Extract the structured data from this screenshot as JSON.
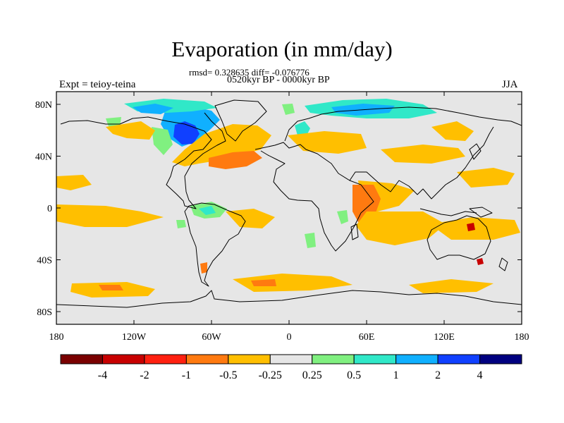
{
  "title": "Evaporation (in mm/day)",
  "stats_line": "rmsd= 0.328635 diff= -0.076776",
  "period": "0520kyr BP - 0000kyr BP",
  "left_label": "Expt = teioy-teina",
  "right_label": "JJA",
  "map": {
    "projection": "cylindrical equidistant",
    "background_color": "#e6e6e6",
    "x_ticks": [
      "180",
      "120W",
      "60W",
      "0",
      "60E",
      "120E",
      "180"
    ],
    "y_ticks": [
      "80N",
      "40N",
      "0",
      "40S",
      "80S"
    ]
  },
  "colorbar": {
    "colors": [
      "#7a0000",
      "#c80000",
      "#ff2010",
      "#ff7a10",
      "#ffbf00",
      "#e6e6e6",
      "#80f080",
      "#30e8c8",
      "#10b0ff",
      "#1040ff",
      "#000080"
    ],
    "labels": [
      "-4",
      "-2",
      "-1",
      "-0.5",
      "-0.25",
      "0.25",
      "0.5",
      "1",
      "2",
      "4"
    ]
  }
}
